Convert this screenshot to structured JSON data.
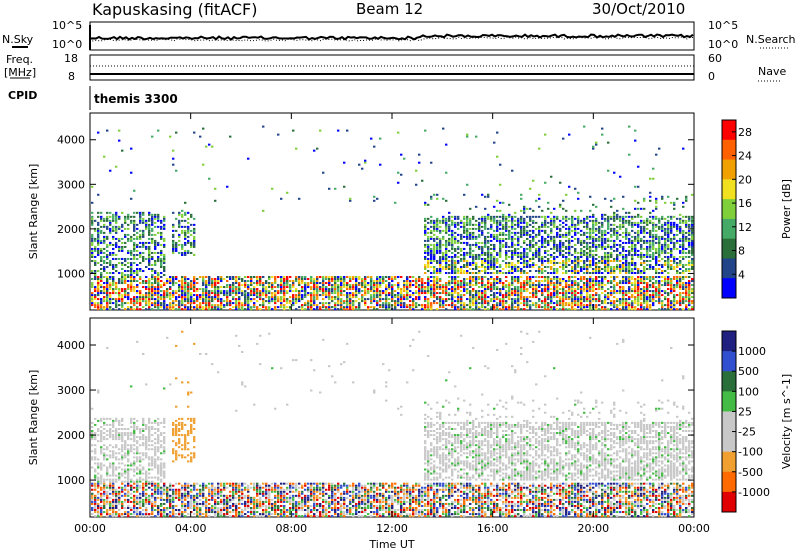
{
  "header": {
    "station": "Kapuskasing (fitACF)",
    "beam": "Beam 12",
    "date": "30/Oct/2010"
  },
  "top_panels": {
    "noise": {
      "left_label": "N.Sky",
      "right_label": "N.Search",
      "left_ticks": [
        "10^5",
        "10^0"
      ],
      "right_ticks": [
        "10^5",
        "10^0"
      ]
    },
    "freq": {
      "left_label_1": "Freq.",
      "left_label_2": "[MHz]",
      "right_label": "Nave",
      "left_ticks": [
        "18",
        "8"
      ],
      "right_ticks": [
        "60",
        "0"
      ]
    },
    "cpid": {
      "label": "CPID",
      "value": "themis 3300"
    }
  },
  "colors": {
    "power_scale": [
      "#0000ff",
      "#224488",
      "#2a6e3a",
      "#44aa66",
      "#7fcf3a",
      "#f0e020",
      "#f0a000",
      "#ff6000",
      "#ff0000"
    ],
    "velocity_scale": [
      "#e00000",
      "#ff6a00",
      "#f0a030",
      "#c8c8c8",
      "#c8c8c8",
      "#44bb44",
      "#2a6e3a",
      "#3050d0",
      "#202080"
    ]
  },
  "chart_data": [
    {
      "type": "heatmap",
      "name": "power",
      "xlabel": "",
      "ylabel": "Slant Range [km]",
      "x_ticks": [
        "00:00",
        "04:00",
        "08:00",
        "12:00",
        "16:00",
        "20:00",
        "00:00"
      ],
      "y_ticks": [
        1000,
        2000,
        3000,
        4000
      ],
      "ylim": [
        180,
        4600
      ],
      "colorbar": {
        "label": "Power [dB]",
        "ticks": [
          "4",
          "8",
          "12",
          "16",
          "20",
          "24",
          "28"
        ],
        "range": [
          0,
          30
        ]
      }
    },
    {
      "type": "heatmap",
      "name": "velocity",
      "xlabel": "Time UT",
      "ylabel": "Slant Range [km]",
      "x_ticks": [
        "00:00",
        "04:00",
        "08:00",
        "12:00",
        "16:00",
        "20:00",
        "00:00"
      ],
      "y_ticks": [
        1000,
        2000,
        3000,
        4000
      ],
      "ylim": [
        180,
        4600
      ],
      "colorbar": {
        "label": "Velocity [m s^-1]",
        "ticks": [
          "1000",
          "500",
          "100",
          "25",
          "-25",
          "-100",
          "-500",
          "-1000"
        ]
      }
    }
  ]
}
